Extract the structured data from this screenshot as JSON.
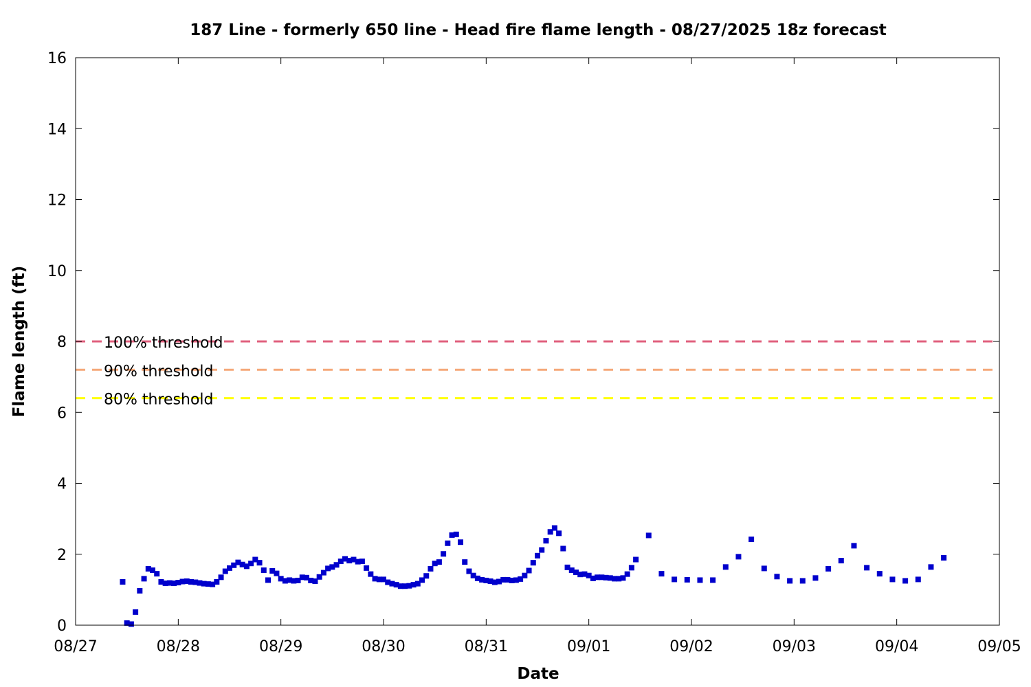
{
  "chart_data": {
    "type": "scatter",
    "title": "187 Line - formerly 650 line - Head fire flame length - 08/27/2025 18z forecast",
    "xlabel": "Date",
    "ylabel": "Flame length (ft)",
    "x_unit": "date",
    "xlim": [
      "08/27 00:00",
      "09/05 00:00"
    ],
    "x_ticks": [
      "08/27",
      "08/28",
      "08/29",
      "08/30",
      "08/31",
      "09/01",
      "09/02",
      "09/03",
      "09/04",
      "09/05"
    ],
    "ylim": [
      0,
      16
    ],
    "y_ticks": [
      0,
      2,
      4,
      6,
      8,
      10,
      12,
      14,
      16
    ],
    "grid": false,
    "reference_lines": [
      {
        "label": "100% threshold",
        "y": 8.0,
        "color": "#e0607e",
        "style": "dashed"
      },
      {
        "label": "90% threshold",
        "y": 7.2,
        "color": "#f5a97a",
        "style": "dashed"
      },
      {
        "label": "80% threshold",
        "y": 6.4,
        "color": "#ffff00",
        "style": "dashed"
      }
    ],
    "series": [
      {
        "color": "#0000cc",
        "marker": "square",
        "points": [
          [
            "08/27 11:00",
            1.22
          ],
          [
            "08/27 12:00",
            0.06
          ],
          [
            "08/27 13:00",
            0.03
          ],
          [
            "08/27 14:00",
            0.37
          ],
          [
            "08/27 15:00",
            0.97
          ],
          [
            "08/27 16:00",
            1.31
          ],
          [
            "08/27 17:00",
            1.59
          ],
          [
            "08/27 18:00",
            1.55
          ],
          [
            "08/27 19:00",
            1.45
          ],
          [
            "08/27 20:00",
            1.22
          ],
          [
            "08/27 21:00",
            1.18
          ],
          [
            "08/27 22:00",
            1.19
          ],
          [
            "08/27 23:00",
            1.18
          ],
          [
            "08/28 00:00",
            1.2
          ],
          [
            "08/28 01:00",
            1.23
          ],
          [
            "08/28 02:00",
            1.24
          ],
          [
            "08/28 03:00",
            1.22
          ],
          [
            "08/28 04:00",
            1.21
          ],
          [
            "08/28 05:00",
            1.19
          ],
          [
            "08/28 06:00",
            1.17
          ],
          [
            "08/28 07:00",
            1.16
          ],
          [
            "08/28 08:00",
            1.15
          ],
          [
            "08/28 09:00",
            1.22
          ],
          [
            "08/28 10:00",
            1.35
          ],
          [
            "08/28 11:00",
            1.52
          ],
          [
            "08/28 12:00",
            1.61
          ],
          [
            "08/28 13:00",
            1.69
          ],
          [
            "08/28 14:00",
            1.77
          ],
          [
            "08/28 15:00",
            1.71
          ],
          [
            "08/28 16:00",
            1.66
          ],
          [
            "08/28 17:00",
            1.74
          ],
          [
            "08/28 18:00",
            1.85
          ],
          [
            "08/28 19:00",
            1.76
          ],
          [
            "08/28 20:00",
            1.55
          ],
          [
            "08/28 21:00",
            1.27
          ],
          [
            "08/28 22:00",
            1.53
          ],
          [
            "08/28 23:00",
            1.46
          ],
          [
            "08/29 00:00",
            1.31
          ],
          [
            "08/29 01:00",
            1.25
          ],
          [
            "08/29 02:00",
            1.27
          ],
          [
            "08/29 03:00",
            1.25
          ],
          [
            "08/29 04:00",
            1.26
          ],
          [
            "08/29 05:00",
            1.35
          ],
          [
            "08/29 06:00",
            1.34
          ],
          [
            "08/29 07:00",
            1.26
          ],
          [
            "08/29 08:00",
            1.24
          ],
          [
            "08/29 09:00",
            1.36
          ],
          [
            "08/29 10:00",
            1.48
          ],
          [
            "08/29 11:00",
            1.6
          ],
          [
            "08/29 12:00",
            1.64
          ],
          [
            "08/29 13:00",
            1.7
          ],
          [
            "08/29 14:00",
            1.8
          ],
          [
            "08/29 15:00",
            1.87
          ],
          [
            "08/29 16:00",
            1.82
          ],
          [
            "08/29 17:00",
            1.85
          ],
          [
            "08/29 18:00",
            1.79
          ],
          [
            "08/29 19:00",
            1.8
          ],
          [
            "08/29 20:00",
            1.61
          ],
          [
            "08/29 21:00",
            1.44
          ],
          [
            "08/29 22:00",
            1.31
          ],
          [
            "08/29 23:00",
            1.29
          ],
          [
            "08/30 00:00",
            1.29
          ],
          [
            "08/30 01:00",
            1.21
          ],
          [
            "08/30 02:00",
            1.17
          ],
          [
            "08/30 03:00",
            1.14
          ],
          [
            "08/30 04:00",
            1.1
          ],
          [
            "08/30 05:00",
            1.1
          ],
          [
            "08/30 06:00",
            1.11
          ],
          [
            "08/30 07:00",
            1.14
          ],
          [
            "08/30 08:00",
            1.17
          ],
          [
            "08/30 09:00",
            1.27
          ],
          [
            "08/30 10:00",
            1.39
          ],
          [
            "08/30 11:00",
            1.59
          ],
          [
            "08/30 12:00",
            1.74
          ],
          [
            "08/30 13:00",
            1.78
          ],
          [
            "08/30 14:00",
            2.01
          ],
          [
            "08/30 15:00",
            2.31
          ],
          [
            "08/30 16:00",
            2.54
          ],
          [
            "08/30 17:00",
            2.56
          ],
          [
            "08/30 18:00",
            2.34
          ],
          [
            "08/30 19:00",
            1.78
          ],
          [
            "08/30 20:00",
            1.52
          ],
          [
            "08/30 21:00",
            1.4
          ],
          [
            "08/30 22:00",
            1.32
          ],
          [
            "08/30 23:00",
            1.28
          ],
          [
            "08/31 00:00",
            1.26
          ],
          [
            "08/31 01:00",
            1.24
          ],
          [
            "08/31 02:00",
            1.21
          ],
          [
            "08/31 03:00",
            1.23
          ],
          [
            "08/31 04:00",
            1.28
          ],
          [
            "08/31 05:00",
            1.28
          ],
          [
            "08/31 06:00",
            1.26
          ],
          [
            "08/31 07:00",
            1.27
          ],
          [
            "08/31 08:00",
            1.3
          ],
          [
            "08/31 09:00",
            1.4
          ],
          [
            "08/31 10:00",
            1.54
          ],
          [
            "08/31 11:00",
            1.76
          ],
          [
            "08/31 12:00",
            1.96
          ],
          [
            "08/31 13:00",
            2.12
          ],
          [
            "08/31 14:00",
            2.38
          ],
          [
            "08/31 15:00",
            2.63
          ],
          [
            "08/31 16:00",
            2.74
          ],
          [
            "08/31 17:00",
            2.59
          ],
          [
            "08/31 18:00",
            2.16
          ],
          [
            "08/31 19:00",
            1.63
          ],
          [
            "08/31 20:00",
            1.55
          ],
          [
            "08/31 21:00",
            1.49
          ],
          [
            "08/31 22:00",
            1.43
          ],
          [
            "08/31 23:00",
            1.44
          ],
          [
            "09/01 00:00",
            1.4
          ],
          [
            "09/01 01:00",
            1.32
          ],
          [
            "09/01 02:00",
            1.35
          ],
          [
            "09/01 03:00",
            1.35
          ],
          [
            "09/01 04:00",
            1.34
          ],
          [
            "09/01 05:00",
            1.33
          ],
          [
            "09/01 06:00",
            1.31
          ],
          [
            "09/01 07:00",
            1.31
          ],
          [
            "09/01 08:00",
            1.33
          ],
          [
            "09/01 09:00",
            1.44
          ],
          [
            "09/01 10:00",
            1.62
          ],
          [
            "09/01 11:00",
            1.85
          ],
          [
            "09/01 14:00",
            2.53
          ],
          [
            "09/01 17:00",
            1.45
          ],
          [
            "09/01 20:00",
            1.29
          ],
          [
            "09/01 23:00",
            1.28
          ],
          [
            "09/02 02:00",
            1.27
          ],
          [
            "09/02 05:00",
            1.27
          ],
          [
            "09/02 08:00",
            1.64
          ],
          [
            "09/02 11:00",
            1.93
          ],
          [
            "09/02 14:00",
            2.42
          ],
          [
            "09/02 17:00",
            1.6
          ],
          [
            "09/02 20:00",
            1.37
          ],
          [
            "09/02 23:00",
            1.25
          ],
          [
            "09/03 02:00",
            1.25
          ],
          [
            "09/03 05:00",
            1.33
          ],
          [
            "09/03 08:00",
            1.59
          ],
          [
            "09/03 11:00",
            1.82
          ],
          [
            "09/03 14:00",
            2.24
          ],
          [
            "09/03 17:00",
            1.62
          ],
          [
            "09/03 20:00",
            1.45
          ],
          [
            "09/03 23:00",
            1.29
          ],
          [
            "09/04 02:00",
            1.25
          ],
          [
            "09/04 05:00",
            1.29
          ],
          [
            "09/04 08:00",
            1.64
          ],
          [
            "09/04 11:00",
            1.9
          ]
        ]
      }
    ]
  }
}
